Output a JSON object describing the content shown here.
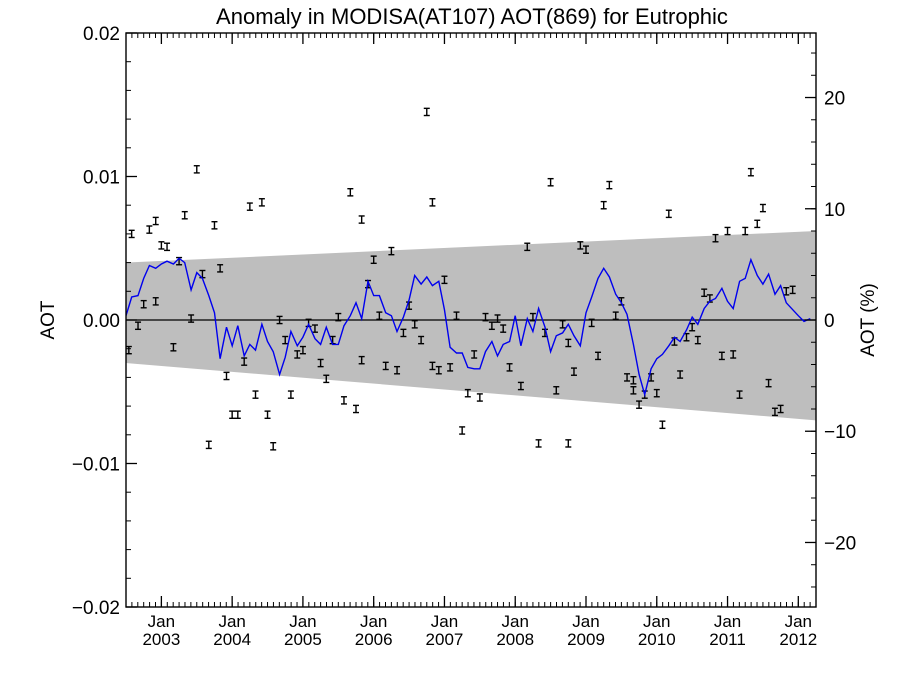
{
  "chart_data": {
    "type": "scatter",
    "title": "Anomaly in MODISA(AT107) AOT(869) for Eutrophic",
    "ylabel": "AOT",
    "y2label": "AOT (%)",
    "xlim": [
      2002.5,
      2012.25
    ],
    "ylim": [
      -0.02,
      0.02
    ],
    "y2lim": [
      -25.8,
      25.8
    ],
    "yticks": [
      -0.02,
      -0.01,
      0.0,
      0.01,
      0.02
    ],
    "ytick_labels": [
      "−0.02",
      "−0.01",
      "0.00",
      "0.01",
      "0.02"
    ],
    "y2ticks": [
      -20,
      -10,
      0,
      10,
      20
    ],
    "y2tick_labels": [
      "−20",
      "−10",
      "0",
      "10",
      "20"
    ],
    "xticks": [
      {
        "x": 2003.0,
        "top": "Jan",
        "bottom": "2003"
      },
      {
        "x": 2004.0,
        "top": "Jan",
        "bottom": "2004"
      },
      {
        "x": 2005.0,
        "top": "Jan",
        "bottom": "2005"
      },
      {
        "x": 2006.0,
        "top": "Jan",
        "bottom": "2006"
      },
      {
        "x": 2007.0,
        "top": "Jan",
        "bottom": "2007"
      },
      {
        "x": 2008.0,
        "top": "Jan",
        "bottom": "2008"
      },
      {
        "x": 2009.0,
        "top": "Jan",
        "bottom": "2009"
      },
      {
        "x": 2010.0,
        "top": "Jan",
        "bottom": "2010"
      },
      {
        "x": 2011.0,
        "top": "Jan",
        "bottom": "2011"
      },
      {
        "x": 2012.0,
        "top": "Jan",
        "bottom": "2012"
      }
    ],
    "band": {
      "x": [
        2002.5,
        2012.25
      ],
      "upper": [
        0.004,
        0.0062
      ],
      "lower": [
        -0.003,
        -0.007
      ],
      "color": "#bebebe"
    },
    "zero_line": 0.0,
    "line_color": "#0000ee",
    "point_color": "#000000",
    "series": [
      {
        "kind": "errorbar_points",
        "error": 0.00025,
        "points": [
          [
            2002.54,
            -0.0021
          ],
          [
            2002.58,
            0.006
          ],
          [
            2002.67,
            -0.0004
          ],
          [
            2002.75,
            0.0011
          ],
          [
            2002.83,
            0.0063
          ],
          [
            2002.92,
            0.0013
          ],
          [
            2002.92,
            0.0069
          ],
          [
            2003.0,
            0.0052
          ],
          [
            2003.08,
            0.0051
          ],
          [
            2003.17,
            -0.0019
          ],
          [
            2003.25,
            0.0041
          ],
          [
            2003.33,
            0.0073
          ],
          [
            2003.42,
            0.0001
          ],
          [
            2003.5,
            0.0105
          ],
          [
            2003.58,
            0.0032
          ],
          [
            2003.67,
            -0.0087
          ],
          [
            2003.75,
            0.0066
          ],
          [
            2003.83,
            0.0036
          ],
          [
            2003.92,
            -0.0039
          ],
          [
            2004.0,
            -0.0066
          ],
          [
            2004.08,
            -0.0066
          ],
          [
            2004.17,
            -0.0029
          ],
          [
            2004.25,
            0.0079
          ],
          [
            2004.33,
            -0.0052
          ],
          [
            2004.42,
            0.0082
          ],
          [
            2004.5,
            -0.0066
          ],
          [
            2004.58,
            -0.0088
          ],
          [
            2004.67,
            0.0
          ],
          [
            2004.75,
            -0.0014
          ],
          [
            2004.83,
            -0.0052
          ],
          [
            2004.92,
            -0.0024
          ],
          [
            2005.0,
            -0.0021
          ],
          [
            2005.08,
            -0.0002
          ],
          [
            2005.17,
            -0.0006
          ],
          [
            2005.25,
            -0.003
          ],
          [
            2005.33,
            -0.0041
          ],
          [
            2005.42,
            -0.0014
          ],
          [
            2005.5,
            0.0002
          ],
          [
            2005.58,
            -0.0056
          ],
          [
            2005.67,
            0.0089
          ],
          [
            2005.75,
            -0.0062
          ],
          [
            2005.83,
            -0.0028
          ],
          [
            2005.83,
            0.007
          ],
          [
            2005.92,
            0.0025
          ],
          [
            2006.0,
            0.0042
          ],
          [
            2006.08,
            0.0003
          ],
          [
            2006.17,
            -0.0032
          ],
          [
            2006.25,
            0.0048
          ],
          [
            2006.33,
            -0.0035
          ],
          [
            2006.42,
            -0.0009
          ],
          [
            2006.5,
            0.001
          ],
          [
            2006.58,
            -0.0003
          ],
          [
            2006.67,
            -0.0014
          ],
          [
            2006.75,
            0.0145
          ],
          [
            2006.83,
            -0.0032
          ],
          [
            2006.83,
            0.0082
          ],
          [
            2006.92,
            -0.0035
          ],
          [
            2007.0,
            0.0028
          ],
          [
            2007.08,
            -0.0033
          ],
          [
            2007.17,
            0.0003
          ],
          [
            2007.25,
            -0.0077
          ],
          [
            2007.33,
            -0.0051
          ],
          [
            2007.42,
            -0.0024
          ],
          [
            2007.5,
            -0.0054
          ],
          [
            2007.58,
            0.0002
          ],
          [
            2007.67,
            -0.0004
          ],
          [
            2007.75,
            0.0001
          ],
          [
            2007.83,
            -0.0006
          ],
          [
            2007.92,
            -0.0033
          ],
          [
            2008.08,
            -0.0046
          ],
          [
            2008.17,
            0.0051
          ],
          [
            2008.25,
            0.0002
          ],
          [
            2008.33,
            -0.0086
          ],
          [
            2008.42,
            -0.0009
          ],
          [
            2008.5,
            0.0096
          ],
          [
            2008.58,
            -0.0049
          ],
          [
            2008.67,
            -0.0003
          ],
          [
            2008.75,
            -0.0016
          ],
          [
            2008.75,
            -0.0086
          ],
          [
            2008.83,
            -0.0036
          ],
          [
            2008.92,
            0.0052
          ],
          [
            2009.0,
            0.0049
          ],
          [
            2009.08,
            -0.0002
          ],
          [
            2009.17,
            -0.0025
          ],
          [
            2009.25,
            0.008
          ],
          [
            2009.33,
            0.0094
          ],
          [
            2009.42,
            0.0003
          ],
          [
            2009.5,
            0.0013
          ],
          [
            2009.58,
            -0.004
          ],
          [
            2009.67,
            -0.0042
          ],
          [
            2009.67,
            -0.0049
          ],
          [
            2009.75,
            -0.0059
          ],
          [
            2009.83,
            -0.0052
          ],
          [
            2009.92,
            -0.004
          ],
          [
            2010.0,
            -0.0051
          ],
          [
            2010.08,
            -0.0073
          ],
          [
            2010.17,
            0.0074
          ],
          [
            2010.25,
            -0.0015
          ],
          [
            2010.33,
            -0.0038
          ],
          [
            2010.42,
            -0.0012
          ],
          [
            2010.5,
            -0.0005
          ],
          [
            2010.58,
            -0.0014
          ],
          [
            2010.67,
            0.0019
          ],
          [
            2010.75,
            0.0015
          ],
          [
            2010.83,
            0.0057
          ],
          [
            2010.92,
            -0.0025
          ],
          [
            2011.0,
            0.0062
          ],
          [
            2011.08,
            -0.0024
          ],
          [
            2011.17,
            -0.0052
          ],
          [
            2011.25,
            0.0062
          ],
          [
            2011.33,
            0.0103
          ],
          [
            2011.42,
            0.0067
          ],
          [
            2011.5,
            0.0078
          ],
          [
            2011.58,
            -0.0044
          ],
          [
            2011.67,
            -0.0064
          ],
          [
            2011.75,
            -0.0062
          ],
          [
            2011.83,
            0.002
          ],
          [
            2011.92,
            0.0021
          ]
        ]
      },
      {
        "kind": "line",
        "points": [
          [
            2002.5,
            0.0003
          ],
          [
            2002.58,
            0.0016
          ],
          [
            2002.67,
            0.0017
          ],
          [
            2002.75,
            0.0029
          ],
          [
            2002.83,
            0.0038
          ],
          [
            2002.92,
            0.0036
          ],
          [
            2003.0,
            0.0039
          ],
          [
            2003.08,
            0.0041
          ],
          [
            2003.17,
            0.0039
          ],
          [
            2003.25,
            0.0043
          ],
          [
            2003.33,
            0.004
          ],
          [
            2003.42,
            0.0021
          ],
          [
            2003.5,
            0.0033
          ],
          [
            2003.58,
            0.0029
          ],
          [
            2003.67,
            0.0017
          ],
          [
            2003.75,
            0.0005
          ],
          [
            2003.83,
            -0.0027
          ],
          [
            2003.92,
            -0.0005
          ],
          [
            2004.0,
            -0.0018
          ],
          [
            2004.08,
            -0.0004
          ],
          [
            2004.17,
            -0.0025
          ],
          [
            2004.25,
            -0.0017
          ],
          [
            2004.33,
            -0.0021
          ],
          [
            2004.42,
            -0.0003
          ],
          [
            2004.5,
            -0.0015
          ],
          [
            2004.58,
            -0.0022
          ],
          [
            2004.67,
            -0.0038
          ],
          [
            2004.75,
            -0.0026
          ],
          [
            2004.83,
            -0.0008
          ],
          [
            2004.92,
            -0.0018
          ],
          [
            2005.0,
            -0.0012
          ],
          [
            2005.08,
            -0.0003
          ],
          [
            2005.17,
            -0.0013
          ],
          [
            2005.25,
            -0.0017
          ],
          [
            2005.33,
            -0.0005
          ],
          [
            2005.42,
            -0.0017
          ],
          [
            2005.5,
            -0.0017
          ],
          [
            2005.58,
            -0.0004
          ],
          [
            2005.67,
            0.0003
          ],
          [
            2005.75,
            0.0012
          ],
          [
            2005.83,
            0.0001
          ],
          [
            2005.92,
            0.0027
          ],
          [
            2006.0,
            0.0017
          ],
          [
            2006.08,
            0.0017
          ],
          [
            2006.17,
            0.0005
          ],
          [
            2006.25,
            0.0003
          ],
          [
            2006.33,
            -0.0008
          ],
          [
            2006.42,
            0.0002
          ],
          [
            2006.5,
            0.0014
          ],
          [
            2006.58,
            0.0031
          ],
          [
            2006.67,
            0.0025
          ],
          [
            2006.75,
            0.003
          ],
          [
            2006.83,
            0.0024
          ],
          [
            2006.92,
            0.0027
          ],
          [
            2007.0,
            0.0007
          ],
          [
            2007.08,
            -0.0019
          ],
          [
            2007.17,
            -0.0023
          ],
          [
            2007.25,
            -0.0023
          ],
          [
            2007.33,
            -0.0033
          ],
          [
            2007.42,
            -0.0034
          ],
          [
            2007.5,
            -0.0034
          ],
          [
            2007.58,
            -0.0022
          ],
          [
            2007.67,
            -0.0015
          ],
          [
            2007.75,
            -0.0025
          ],
          [
            2007.83,
            -0.0017
          ],
          [
            2007.92,
            -0.0015
          ],
          [
            2008.0,
            0.0003
          ],
          [
            2008.08,
            -0.0018
          ],
          [
            2008.17,
            0.0001
          ],
          [
            2008.25,
            -0.0008
          ],
          [
            2008.33,
            0.0008
          ],
          [
            2008.42,
            -0.0005
          ],
          [
            2008.5,
            -0.0022
          ],
          [
            2008.58,
            -0.0011
          ],
          [
            2008.67,
            -0.0009
          ],
          [
            2008.75,
            -0.0003
          ],
          [
            2008.83,
            -0.0011
          ],
          [
            2008.92,
            -0.0018
          ],
          [
            2009.0,
            0.0005
          ],
          [
            2009.08,
            0.0016
          ],
          [
            2009.17,
            0.0029
          ],
          [
            2009.25,
            0.0036
          ],
          [
            2009.33,
            0.003
          ],
          [
            2009.42,
            0.0018
          ],
          [
            2009.5,
            0.0012
          ],
          [
            2009.58,
            0.0004
          ],
          [
            2009.67,
            -0.0017
          ],
          [
            2009.75,
            -0.0038
          ],
          [
            2009.83,
            -0.0052
          ],
          [
            2009.92,
            -0.0034
          ],
          [
            2010.0,
            -0.0027
          ],
          [
            2010.08,
            -0.0024
          ],
          [
            2010.17,
            -0.0018
          ],
          [
            2010.25,
            -0.0012
          ],
          [
            2010.33,
            -0.0015
          ],
          [
            2010.42,
            -0.0007
          ],
          [
            2010.5,
            0.0002
          ],
          [
            2010.58,
            -0.0003
          ],
          [
            2010.67,
            0.0008
          ],
          [
            2010.75,
            0.0013
          ],
          [
            2010.83,
            0.0015
          ],
          [
            2010.92,
            0.0022
          ],
          [
            2011.0,
            0.0013
          ],
          [
            2011.08,
            0.0008
          ],
          [
            2011.17,
            0.0027
          ],
          [
            2011.25,
            0.0029
          ],
          [
            2011.33,
            0.0042
          ],
          [
            2011.42,
            0.0031
          ],
          [
            2011.5,
            0.0025
          ],
          [
            2011.58,
            0.0032
          ],
          [
            2011.67,
            0.0018
          ],
          [
            2011.75,
            0.0024
          ],
          [
            2011.83,
            0.0012
          ],
          [
            2012.0,
            0.0003
          ],
          [
            2012.08,
            -0.0001
          ],
          [
            2012.17,
            0.0001
          ]
        ]
      }
    ]
  }
}
